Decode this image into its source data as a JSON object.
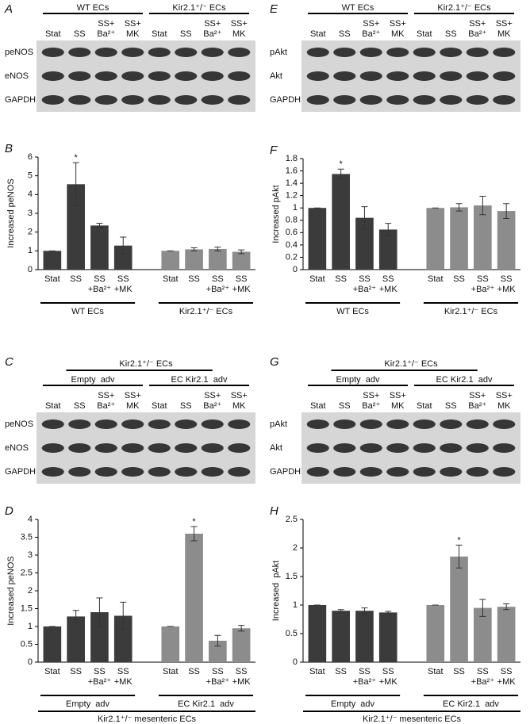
{
  "blots": [
    {
      "panel": "A",
      "headers": [
        "WT ECs",
        "Kir2.1⁺/⁻ ECs"
      ],
      "lanes": [
        "Stat",
        "SS",
        [
          "SS+",
          "Ba²⁺"
        ],
        [
          "SS+",
          "MK"
        ],
        "Stat",
        "SS",
        [
          "SS+",
          "Ba²⁺"
        ],
        [
          "SS+",
          "MK"
        ]
      ],
      "rows": [
        "peNOS",
        "eNOS",
        "GAPDH"
      ]
    },
    {
      "panel": "E",
      "headers": [
        "WT ECs",
        "Kir2.1⁺/⁻ ECs"
      ],
      "lanes": [
        "Stat",
        "SS",
        [
          "SS+",
          "Ba²⁺"
        ],
        [
          "SS+",
          "MK"
        ],
        "Stat",
        "SS",
        [
          "SS+",
          "Ba²⁺"
        ],
        [
          "SS+",
          "MK"
        ]
      ],
      "rows": [
        "pAkt",
        "Akt",
        "GAPDH"
      ]
    },
    {
      "panel": "C",
      "top_header": "Kir2.1⁺/⁻ ECs",
      "headers": [
        "Empty  adv",
        "EC Kir2.1  adv"
      ],
      "lanes": [
        "Stat",
        "SS",
        [
          "SS+",
          "Ba²⁺"
        ],
        [
          "SS+",
          "MK"
        ],
        "Stat",
        "SS",
        [
          "SS+",
          "Ba²⁺"
        ],
        [
          "SS+",
          "MK"
        ]
      ],
      "rows": [
        "peNOS",
        "eNOS",
        "GAPDH"
      ]
    },
    {
      "panel": "G",
      "top_header": "Kir2.1⁺/⁻ ECs",
      "headers": [
        "Empty  adv",
        "EC Kir2.1  adv"
      ],
      "lanes": [
        "Stat",
        "SS",
        [
          "SS+",
          "Ba²⁺"
        ],
        [
          "SS+",
          "MK"
        ],
        "Stat",
        "SS",
        [
          "SS+",
          "Ba²⁺"
        ],
        [
          "SS+",
          "MK"
        ]
      ],
      "rows": [
        "pAkt",
        "Akt",
        "GAPDH"
      ]
    }
  ],
  "chart_data": [
    {
      "type": "bar",
      "panel": "B",
      "y_label": "Increased peNOS",
      "ylim": [
        0,
        6
      ],
      "yticks": [
        0,
        1,
        2,
        3,
        4,
        5,
        6
      ],
      "annotation": "*",
      "categories": [
        "Stat",
        "SS",
        [
          "SS",
          "+Ba²⁺"
        ],
        [
          "SS",
          "+MK"
        ],
        "Stat",
        "SS",
        [
          "SS",
          "+Ba²⁺"
        ],
        [
          "SS",
          "+MK"
        ]
      ],
      "groups": [
        {
          "name": "WT ECs",
          "color": "#3b3b3b",
          "values": [
            1,
            4.55,
            2.35,
            1.28
          ],
          "errors": [
            0,
            1.15,
            0.12,
            0.45
          ]
        },
        {
          "name": "Kir2.1⁺/⁻ ECs",
          "color": "#8c8c8c",
          "values": [
            1,
            1.08,
            1.1,
            0.95
          ],
          "errors": [
            0,
            0.08,
            0.1,
            0.1
          ]
        }
      ]
    },
    {
      "type": "bar",
      "panel": "F",
      "y_label": "Increased pAkt",
      "ylim": [
        0,
        1.8
      ],
      "yticks": [
        0,
        0.2,
        0.4,
        0.6,
        0.8,
        1,
        1.2,
        1.4,
        1.6,
        1.8
      ],
      "annotation": "*",
      "categories": [
        "Stat",
        "SS",
        [
          "SS",
          "+Ba²⁺"
        ],
        [
          "SS",
          "+MK"
        ],
        "Stat",
        "SS",
        [
          "SS",
          "+Ba²⁺"
        ],
        [
          "SS",
          "+MK"
        ]
      ],
      "groups": [
        {
          "name": "WT ECs",
          "color": "#3b3b3b",
          "values": [
            1,
            1.55,
            0.84,
            0.65
          ],
          "errors": [
            0,
            0.08,
            0.18,
            0.1
          ]
        },
        {
          "name": "Kir2.1⁺/⁻ ECs",
          "color": "#8c8c8c",
          "values": [
            1,
            1.01,
            1.04,
            0.95
          ],
          "errors": [
            0,
            0.06,
            0.15,
            0.12
          ]
        }
      ]
    },
    {
      "type": "bar",
      "panel": "D",
      "y_label": "Increased peNOS",
      "ylim": [
        0,
        4
      ],
      "yticks": [
        0,
        0.5,
        1,
        1.5,
        2,
        2.5,
        3,
        3.5,
        4
      ],
      "annotation": "*",
      "footer": "Kir2.1⁺/⁻ mesenteric ECs",
      "categories": [
        "Stat",
        "SS",
        [
          "SS",
          "+Ba²⁺"
        ],
        [
          "SS",
          "+MK"
        ],
        "Stat",
        "SS",
        [
          "SS",
          "+Ba²⁺"
        ],
        [
          "SS",
          "+MK"
        ]
      ],
      "groups": [
        {
          "name": "Empty  adv",
          "color": "#3b3b3b",
          "values": [
            1,
            1.28,
            1.4,
            1.3
          ],
          "errors": [
            0,
            0.17,
            0.4,
            0.38
          ]
        },
        {
          "name": "EC Kir2.1  adv",
          "color": "#8c8c8c",
          "values": [
            1,
            3.6,
            0.6,
            0.95
          ],
          "errors": [
            0,
            0.2,
            0.15,
            0.08
          ]
        }
      ]
    },
    {
      "type": "bar",
      "panel": "H",
      "y_label": "Increased  pAkt",
      "ylim": [
        0,
        2.5
      ],
      "yticks": [
        0,
        0.5,
        1,
        1.5,
        2,
        2.5
      ],
      "annotation": "*",
      "footer": "Kir2.1⁺/⁻ mesenteric ECs",
      "categories": [
        "Stat",
        "SS",
        [
          "SS",
          "+Ba²⁺"
        ],
        [
          "SS",
          "+MK"
        ],
        "Stat",
        "SS",
        [
          "SS",
          "+Ba²⁺"
        ],
        [
          "SS",
          "+MK"
        ]
      ],
      "groups": [
        {
          "name": "Empty  adv",
          "color": "#3b3b3b",
          "values": [
            1,
            0.9,
            0.9,
            0.87
          ],
          "errors": [
            0,
            0.02,
            0.05,
            0.02
          ]
        },
        {
          "name": "EC Kir2.1  adv",
          "color": "#8c8c8c",
          "values": [
            1,
            1.85,
            0.95,
            0.97
          ],
          "errors": [
            0,
            0.2,
            0.15,
            0.05
          ]
        }
      ]
    }
  ]
}
